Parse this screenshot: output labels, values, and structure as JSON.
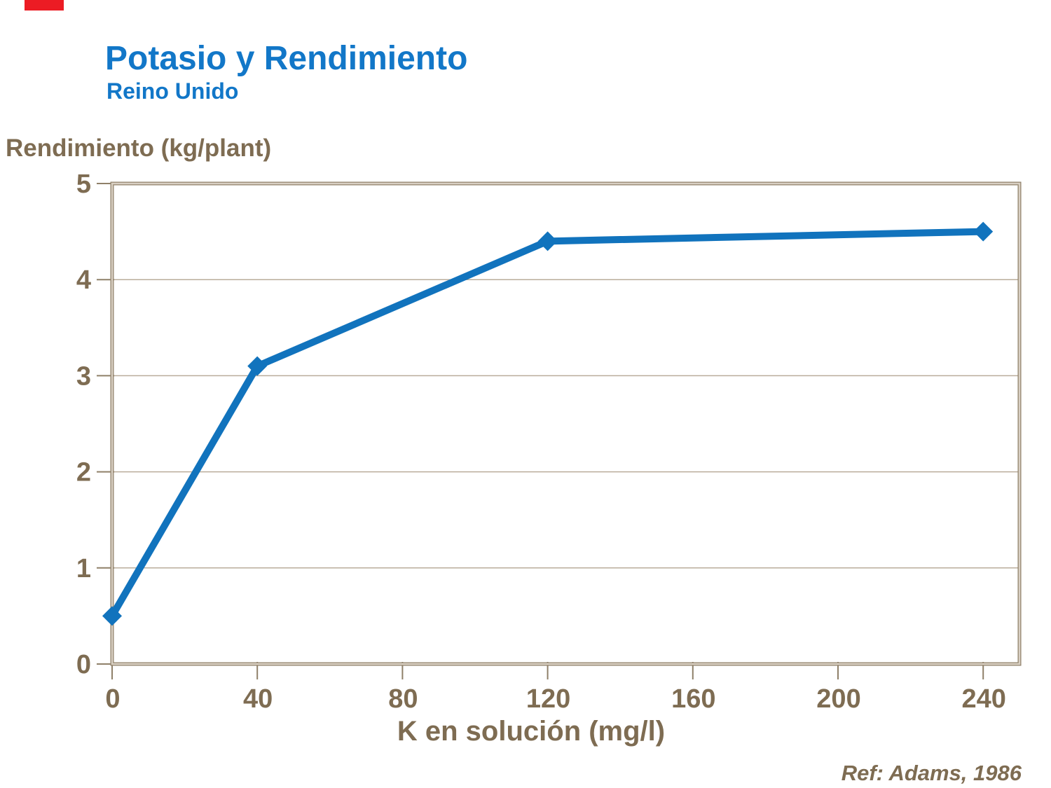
{
  "header": {
    "title": "Potasio y Rendimiento",
    "subtitle": "Reino Unido",
    "title_color": "#1277c8"
  },
  "decor": {
    "red_marker_color": "#ec1c24"
  },
  "footer": {
    "reference": "Ref: Adams, 1986"
  },
  "chart_data": {
    "type": "line",
    "title": "Potasio y Rendimiento",
    "subtitle": "Reino Unido",
    "xlabel": "K en solución (mg/l)",
    "ylabel": "Rendimiento (kg/plant)",
    "x": [
      0,
      40,
      120,
      240
    ],
    "values": [
      0.5,
      3.1,
      4.4,
      4.5
    ],
    "x_ticks": [
      0,
      40,
      80,
      120,
      160,
      200,
      240
    ],
    "y_ticks": [
      0,
      1,
      2,
      3,
      4,
      5
    ],
    "xlim": [
      0,
      250
    ],
    "ylim": [
      0,
      5
    ],
    "grid": "horizontal-only",
    "legend": "none",
    "marker": "diamond",
    "colors": {
      "line": "#1173bd",
      "frame_dark": "#8f8069",
      "frame_light": "#d9d0c3",
      "gridline": "#baad9b",
      "tick": "#8f8069",
      "tick_label": "#7e6c52"
    }
  }
}
